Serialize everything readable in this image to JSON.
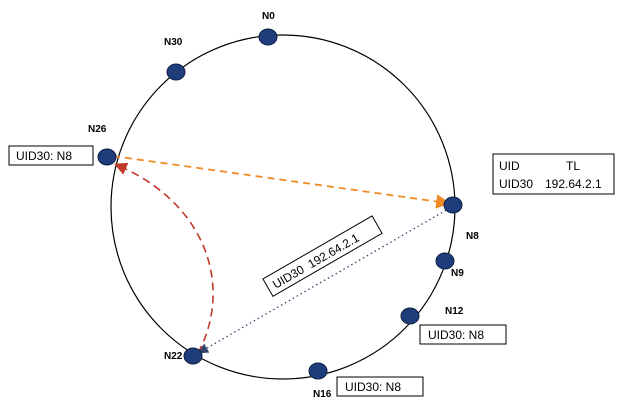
{
  "colors": {
    "node_fill": "#1f3d7a",
    "ring": "#000000",
    "orange_arrow": "#f08a24",
    "red_arrow": "#c0392b",
    "dotted_arrow": "#33446b"
  },
  "nodes": {
    "n0": "N0",
    "n30": "N30",
    "n26": "N26",
    "n8": "N8",
    "n9": "N9",
    "n12": "N12",
    "n16": "N16",
    "n22": "N22"
  },
  "boxes": {
    "n26_entry": "UID30: N8",
    "table_header_uid": "UID",
    "table_header_tl": "TL",
    "table_row_uid": "UID30",
    "table_row_tl": "192.64.2.1",
    "message_label": "UID30  192.64.2.1",
    "n12_entry": "UID30: N8",
    "n16_entry": "UID30: N8"
  }
}
